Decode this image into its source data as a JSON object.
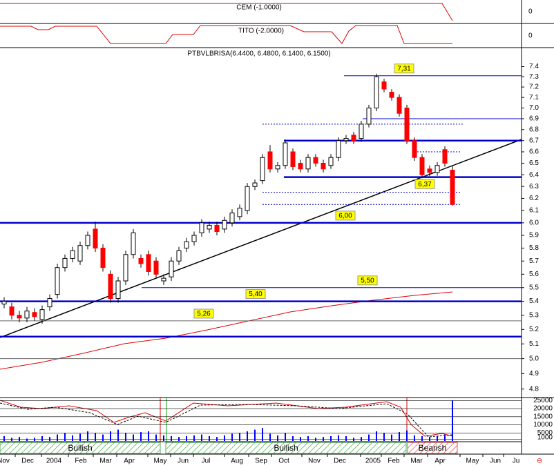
{
  "panels": {
    "cem": {
      "title": "CEM (-1.0000)",
      "tick": 0
    },
    "tito": {
      "title": "TITO (-2.0000)",
      "tick": 0
    }
  },
  "chart_data": {
    "type": "candlestick",
    "title": "PTBVLBRISA(6.4400, 6.4800, 6.1400, 6.1500)",
    "log_scale": true,
    "up_color": "#ffffff",
    "down_color": "#ff0000",
    "open": [
      5.38,
      5.36,
      5.3,
      5.28,
      5.32,
      5.27,
      5.36,
      5.45,
      5.65,
      5.72,
      5.7,
      5.82,
      5.95,
      5.8,
      5.6,
      5.42,
      5.55,
      5.75,
      5.72,
      5.75,
      5.7,
      5.55,
      5.58,
      5.7,
      5.8,
      5.85,
      5.92,
      5.95,
      5.98,
      5.95,
      6.0,
      6.05,
      6.1,
      6.3,
      6.35,
      6.6,
      6.45,
      6.48,
      6.6,
      6.5,
      6.45,
      6.55,
      6.5,
      6.48,
      6.55,
      6.7,
      6.75,
      6.72,
      6.85,
      7.0,
      7.25,
      7.15,
      7.1,
      7.0,
      6.7,
      6.55,
      6.45,
      6.42,
      6.62,
      6.44
    ],
    "high": [
      5.43,
      5.39,
      5.33,
      5.36,
      5.35,
      5.37,
      5.45,
      5.68,
      5.75,
      5.81,
      5.85,
      5.93,
      6.01,
      5.83,
      5.63,
      5.58,
      5.78,
      5.95,
      5.75,
      5.78,
      5.73,
      5.6,
      5.73,
      5.81,
      5.88,
      5.93,
      6.03,
      6.01,
      6.01,
      6.05,
      6.11,
      6.15,
      6.33,
      6.36,
      6.58,
      6.66,
      6.51,
      6.71,
      6.63,
      6.53,
      6.58,
      6.58,
      6.53,
      6.58,
      6.73,
      6.75,
      6.78,
      6.88,
      7.03,
      7.33,
      7.28,
      7.18,
      7.13,
      7.03,
      6.73,
      6.58,
      6.48,
      6.51,
      6.65,
      6.48
    ],
    "low": [
      5.35,
      5.27,
      5.25,
      5.25,
      5.26,
      5.24,
      5.33,
      5.42,
      5.62,
      5.69,
      5.67,
      5.79,
      5.77,
      5.62,
      5.39,
      5.39,
      5.52,
      5.72,
      5.65,
      5.59,
      5.57,
      5.52,
      5.55,
      5.67,
      5.77,
      5.82,
      5.89,
      5.92,
      5.9,
      5.92,
      5.97,
      6.02,
      6.07,
      6.27,
      6.32,
      6.42,
      6.42,
      6.45,
      6.44,
      6.42,
      6.42,
      6.47,
      6.42,
      6.45,
      6.52,
      6.67,
      6.67,
      6.69,
      6.82,
      6.97,
      7.15,
      7.07,
      6.92,
      6.67,
      6.52,
      6.37,
      6.39,
      6.39,
      6.47,
      6.14
    ],
    "close": [
      5.4,
      5.3,
      5.28,
      5.33,
      5.29,
      5.34,
      5.42,
      5.65,
      5.72,
      5.78,
      5.82,
      5.9,
      5.8,
      5.65,
      5.42,
      5.55,
      5.75,
      5.92,
      5.68,
      5.62,
      5.6,
      5.57,
      5.7,
      5.78,
      5.85,
      5.9,
      6.0,
      5.98,
      5.93,
      6.02,
      6.08,
      6.12,
      6.3,
      6.33,
      6.55,
      6.45,
      6.48,
      6.68,
      6.47,
      6.45,
      6.55,
      6.5,
      6.45,
      6.55,
      6.7,
      6.72,
      6.7,
      6.85,
      7.0,
      7.3,
      7.18,
      7.1,
      6.95,
      6.7,
      6.55,
      6.4,
      6.42,
      6.48,
      6.5,
      6.15
    ],
    "ylim": [
      4.75,
      7.57
    ],
    "yticks": [
      4.8,
      4.9,
      {
        "value": 5.0,
        "label": "5.0"
      },
      5.1,
      5.2,
      5.3,
      5.4,
      5.5,
      5.6,
      5.7,
      5.8,
      5.9,
      {
        "value": 6.0,
        "label": "6.0"
      },
      6.1,
      6.2,
      6.3,
      6.4,
      6.5,
      6.6,
      6.7,
      6.8,
      6.9,
      {
        "value": 7.0,
        "label": "7.0"
      },
      7.1,
      7.2,
      7.3,
      7.4
    ],
    "levels": [
      {
        "value": 6.0,
        "style": "thick"
      },
      {
        "value": 5.4,
        "style": "thick"
      },
      {
        "value": 5.15,
        "style": "thick"
      },
      {
        "value": 6.7,
        "style": "thick"
      },
      {
        "value": 6.38,
        "style": "thick"
      },
      {
        "value": 7.31,
        "style": "thin"
      },
      {
        "value": 5.5,
        "style": "thin"
      },
      {
        "value": 6.9,
        "style": "thin"
      },
      {
        "value": 5.26,
        "style": "gray"
      },
      {
        "value": 5.0,
        "style": "gray"
      },
      {
        "value": 6.85,
        "style": "dash"
      },
      {
        "value": 6.6,
        "style": "dash"
      },
      {
        "value": 6.25,
        "style": "dash"
      },
      {
        "value": 6.15,
        "style": "dash"
      }
    ],
    "annotations": [
      {
        "value": 7.31,
        "label": "7,31"
      },
      {
        "value": 6.37,
        "label": "6,37"
      },
      {
        "value": 6.0,
        "label": "6,00"
      },
      {
        "value": 5.5,
        "label": "5,50"
      },
      {
        "value": 5.4,
        "label": "5,40"
      },
      {
        "value": 5.26,
        "label": "5,26"
      }
    ],
    "x_labels": [
      "Nov",
      "Dec",
      "2004",
      "Feb",
      "Mar",
      "Apr",
      "May",
      "Jun",
      "Jul",
      "Aug",
      "Sep",
      "Oct",
      "Nov",
      "Dec",
      "2005",
      "Feb",
      "Mar",
      "Apr",
      "May",
      "Jun",
      "Ju"
    ],
    "volume": {
      "color": "#0000ff",
      "values": [
        3000,
        2000,
        2500,
        1500,
        2000,
        3000,
        2500,
        4000,
        5000,
        3500,
        4500,
        6000,
        5000,
        4000,
        6000,
        7000,
        5000,
        4000,
        5500,
        6000,
        4000,
        3500,
        3000,
        2500,
        3000,
        3500,
        4000,
        3000,
        2500,
        3500,
        4500,
        5000,
        6000,
        7000,
        8000,
        4500,
        3500,
        5000,
        3000,
        2500,
        3000,
        2000,
        2500,
        3000,
        3500,
        3000,
        2000,
        2500,
        4000,
        6000,
        5000,
        4000,
        5500,
        6500,
        3500,
        3000,
        2500,
        3000,
        4000,
        25000
      ],
      "ylim": [
        0,
        26000
      ],
      "yticks": [
        {
          "value": 1000,
          "label": "1000"
        },
        {
          "value": 5000,
          "label": "5000"
        },
        {
          "value": 10000,
          "label": "10000"
        },
        {
          "value": 15000,
          "label": "15000"
        },
        {
          "value": 20000,
          "label": "20000"
        },
        {
          "value": 25000,
          "label": "25000"
        }
      ]
    },
    "signals": [
      {
        "label": "Bullish",
        "color": "#4caf50"
      },
      {
        "label": "Bullish",
        "color": "#4caf50"
      },
      {
        "label": "Bearish",
        "color": "#e05050"
      }
    ]
  }
}
